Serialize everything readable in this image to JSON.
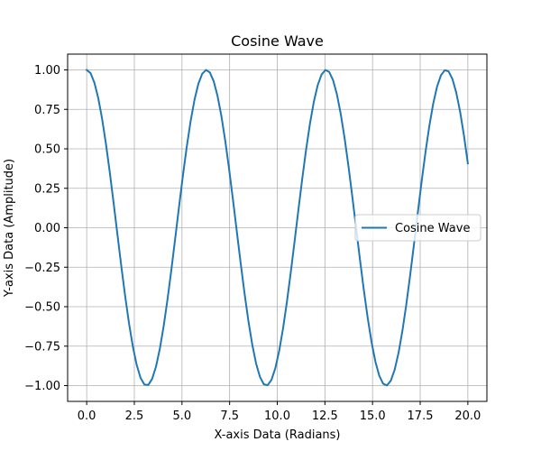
{
  "chart_data": {
    "type": "line",
    "title": "Cosine Wave",
    "xlabel": "X-axis Data (Radians)",
    "ylabel": "Y-axis Data (Amplitude)",
    "xlim": [
      -1.0,
      21.0
    ],
    "ylim": [
      -1.1,
      1.1
    ],
    "xticks": [
      0.0,
      2.5,
      5.0,
      7.5,
      10.0,
      12.5,
      15.0,
      17.5,
      20.0
    ],
    "xtick_labels": [
      "0.0",
      "2.5",
      "5.0",
      "7.5",
      "10.0",
      "12.5",
      "15.0",
      "17.5",
      "20.0"
    ],
    "yticks": [
      -1.0,
      -0.75,
      -0.5,
      -0.25,
      0.0,
      0.25,
      0.5,
      0.75,
      1.0
    ],
    "ytick_labels": [
      "−1.00",
      "−0.75",
      "−0.50",
      "−0.25",
      "0.00",
      "0.25",
      "0.50",
      "0.75",
      "1.00"
    ],
    "grid": true,
    "legend_position": "center-right",
    "series": [
      {
        "name": "Cosine Wave",
        "color": "#1f77b4",
        "function": "cos(x)",
        "x_start": 0.0,
        "x_end": 20.0,
        "num_points": 100
      }
    ]
  }
}
